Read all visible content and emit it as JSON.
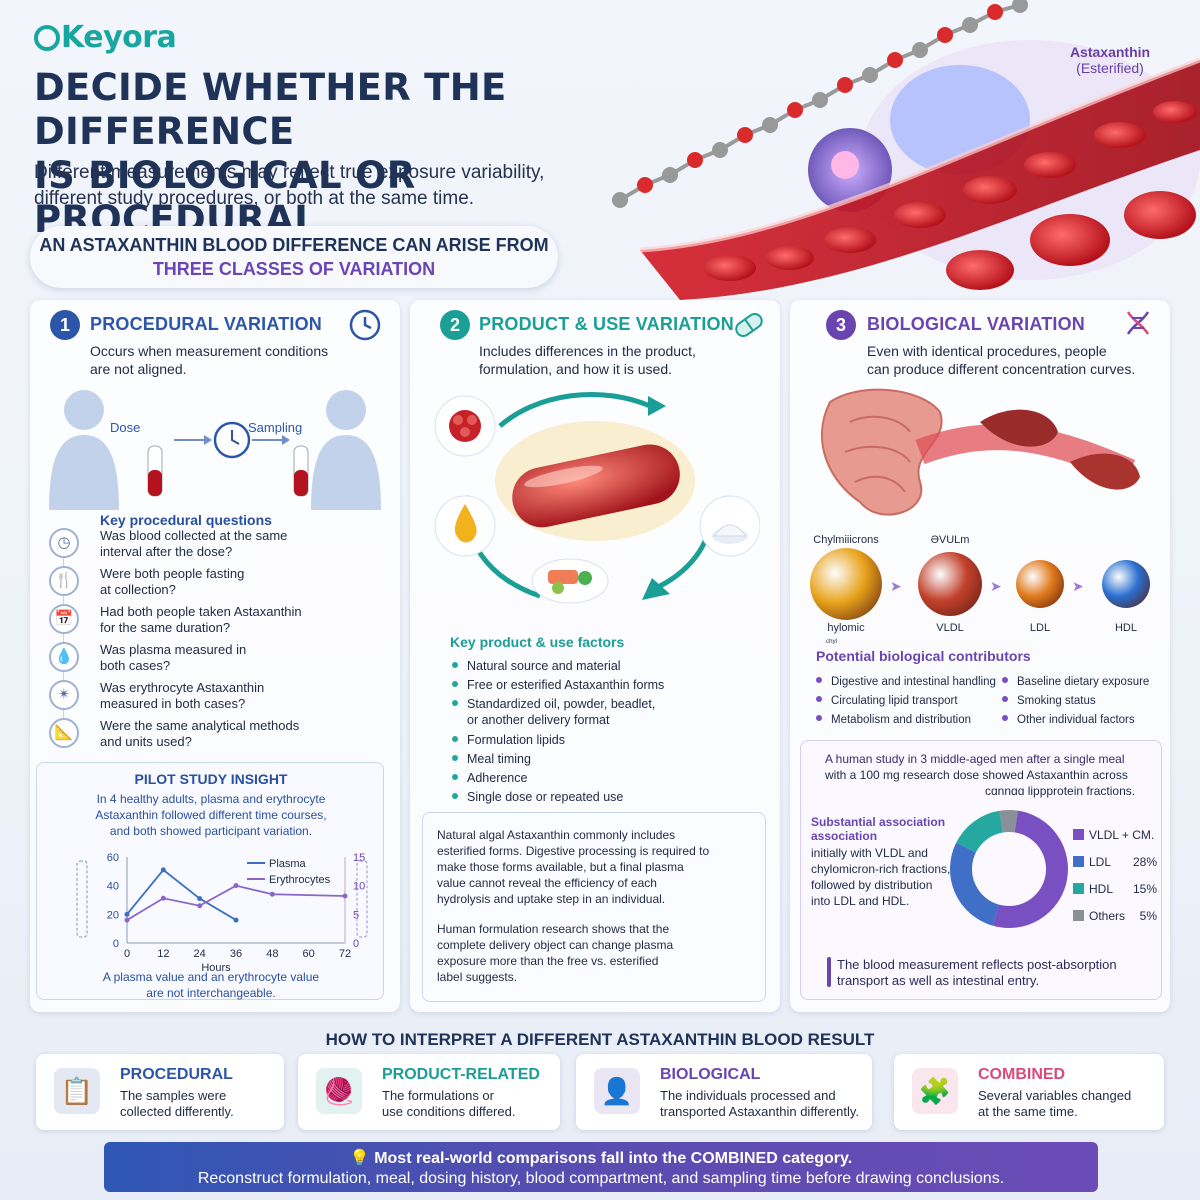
{
  "brand": {
    "logo": "Keyora"
  },
  "header": {
    "title_line1": "DECIDE WHETHER THE DIFFERENCE",
    "title_line2": "IS BIOLOGICAL OR PROCEDURAL",
    "subtitle_line1": "Different measurements may reflect true exposure variability,",
    "subtitle_line2": "different study procedures, or both at the same time.",
    "molecule_label": "Astaxanthin",
    "molecule_sublabel": "(Esterified)"
  },
  "banner": {
    "line1": "AN ASTAXANTHIN BLOOD DIFFERENCE CAN ARISE FROM",
    "line2": "THREE CLASSES OF VARIATION"
  },
  "col1": {
    "num": "1",
    "title": "PROCEDURAL VARIATION",
    "desc1": "Occurs when measurement conditions",
    "desc2": "are not aligned.",
    "dose_label": "Dose",
    "sampling_label": "Sampling",
    "kq_title": "Key procedural questions",
    "questions": [
      {
        "l1": "Was blood collected at the same",
        "l2": "interval after the dose?"
      },
      {
        "l1": "Were both people fasting",
        "l2": "at collection?"
      },
      {
        "l1": "Had both people taken Astaxanthin",
        "l2": "for the same duration?"
      },
      {
        "l1": "Was plasma measured in",
        "l2": "both cases?"
      },
      {
        "l1": "Was erythrocyte Astaxanthin",
        "l2": "measured in both cases?"
      },
      {
        "l1": "Were the same analytical methods",
        "l2": "and units used?"
      }
    ],
    "pilot_title": "PILOT STUDY INSIGHT",
    "pilot_l1": "In 4 healthy adults, plasma and erythrocyte",
    "pilot_l2": "Astaxanthin followed different time courses,",
    "pilot_l3": "and both showed participant variation.",
    "pilot_note1": "A plasma value and an erythrocyte value",
    "pilot_note2": "are not interchangeable."
  },
  "chart_data": {
    "type": "line",
    "xlabel": "Hours",
    "x_ticks": [
      "0",
      "12",
      "24",
      "36",
      "48",
      "60",
      "72"
    ],
    "y_left_ticks": [
      "0",
      "20",
      "40",
      "60"
    ],
    "y_right_ticks": [
      "0",
      "5",
      "10",
      "15"
    ],
    "ylim_left": [
      0,
      60
    ],
    "ylim_right": [
      0,
      15
    ],
    "series": [
      {
        "name": "Plasma",
        "axis": "left",
        "color": "#3c6fc4",
        "x": [
          0,
          12,
          24,
          36
        ],
        "y": [
          20,
          51,
          31,
          16
        ]
      },
      {
        "name": "Erythrocytes",
        "axis": "right",
        "color": "#8a66c9",
        "x": [
          0,
          12,
          24,
          36,
          48,
          72
        ],
        "y": [
          4,
          7.8,
          6.5,
          10,
          8.5,
          8.2
        ]
      }
    ],
    "legend": "top-right",
    "grid": false
  },
  "col2": {
    "num": "2",
    "title": "PRODUCT & USE VARIATION",
    "desc1": "Includes differences in the product,",
    "desc2": "formulation, and how it is used.",
    "factors_title": "Key product & use factors",
    "factors": [
      {
        "l1": "Natural source and material",
        "l2": ""
      },
      {
        "l1": "Free or esterified Astaxanthin forms",
        "l2": ""
      },
      {
        "l1": "Standardized oil, powder, beadlet,",
        "l2": "or another delivery format"
      },
      {
        "l1": "Formulation lipids",
        "l2": ""
      },
      {
        "l1": "Meal timing",
        "l2": ""
      },
      {
        "l1": "Adherence",
        "l2": ""
      },
      {
        "l1": "Single dose or repeated use",
        "l2": ""
      }
    ],
    "note_a": [
      "Natural algal Astaxanthin commonly includes",
      "esterified forms. Digestive processing is required to",
      "make those forms available, but a final plasma",
      "value cannot reveal the efficiency of each",
      "hydrolysis and uptake step in an individual."
    ],
    "note_b": [
      "Human formulation research shows that the",
      "complete delivery object can change plasma",
      "exposure more than the free vs. esterified",
      "label suggests."
    ]
  },
  "col3": {
    "num": "3",
    "title": "BIOLOGICAL VARIATION",
    "desc1": "Even with identical procedures, people",
    "desc2": "can produce different concentration curves.",
    "particles": {
      "top_a": "Chylmiiicrons",
      "top_b": "ƏVULm",
      "bottom_a": "hylomic",
      "bottom_a2": "ᶜʰʸˡ",
      "vldl": "VLDL",
      "ldl": "LDL",
      "hdl": "HDL"
    },
    "contrib_title": "Potential biological contributors",
    "contrib_left": [
      "Digestive and intestinal handling",
      "Circulating lipid transport",
      "Metabolism and distribution"
    ],
    "contrib_right": [
      "Baseline dietary exposure",
      "Smoking status",
      "Other individual factors"
    ],
    "study_l1": "A human study in 3 middle-aged men after a single meal",
    "study_l2": "with a 100 mg research dose showed Astaxanthin across",
    "study_l3": "cɑnnɑɑ lippprotein fractions.",
    "assoc_title1": "Substantial association",
    "assoc_title2": "association",
    "assoc_text": [
      "initially with VLDL and",
      "chylomicron-rich fractions,",
      "followed by distribution",
      "into LDL and HDL."
    ],
    "donut": [
      {
        "label": "VLDL + CM.",
        "pct_label": "",
        "value": 52,
        "color": "#7a4fc2"
      },
      {
        "label": "LDL",
        "pct_label": "28%",
        "value": 28,
        "color": "#3f6fc6"
      },
      {
        "label": "HDL",
        "pct_label": "15%",
        "value": 15,
        "color": "#25a89f"
      },
      {
        "label": "Others",
        "pct_label": "5%",
        "value": 5,
        "color": "#8a8f98"
      }
    ],
    "conclusion_l1": "The blood measurement reflects post-absorption",
    "conclusion_l2": "transport as well as intestinal entry."
  },
  "interpret": {
    "heading": "HOW TO INTERPRET A DIFFERENT ASTAXANTHIN BLOOD RESULT",
    "cards": [
      {
        "title": "PROCEDURAL",
        "l1": "The samples were",
        "l2": "collected differently.",
        "color": "#2d56a8"
      },
      {
        "title": "PRODUCT-RELATED",
        "l1": "The formulations or",
        "l2": "use conditions differed.",
        "color": "#1b9e96"
      },
      {
        "title": "BIOLOGICAL",
        "l1": "The individuals processed and",
        "l2": "transported Astaxanthin differently.",
        "color": "#6a45b0"
      },
      {
        "title": "COMBINED",
        "l1": "Several variables changed",
        "l2": "at the same time.",
        "color": "#d94a7d"
      }
    ]
  },
  "footer": {
    "line1": "Most real-world comparisons fall into the COMBINED category.",
    "line2": "Reconstruct formulation, meal, dosing history, blood compartment, and sampling time before drawing conclusions."
  }
}
